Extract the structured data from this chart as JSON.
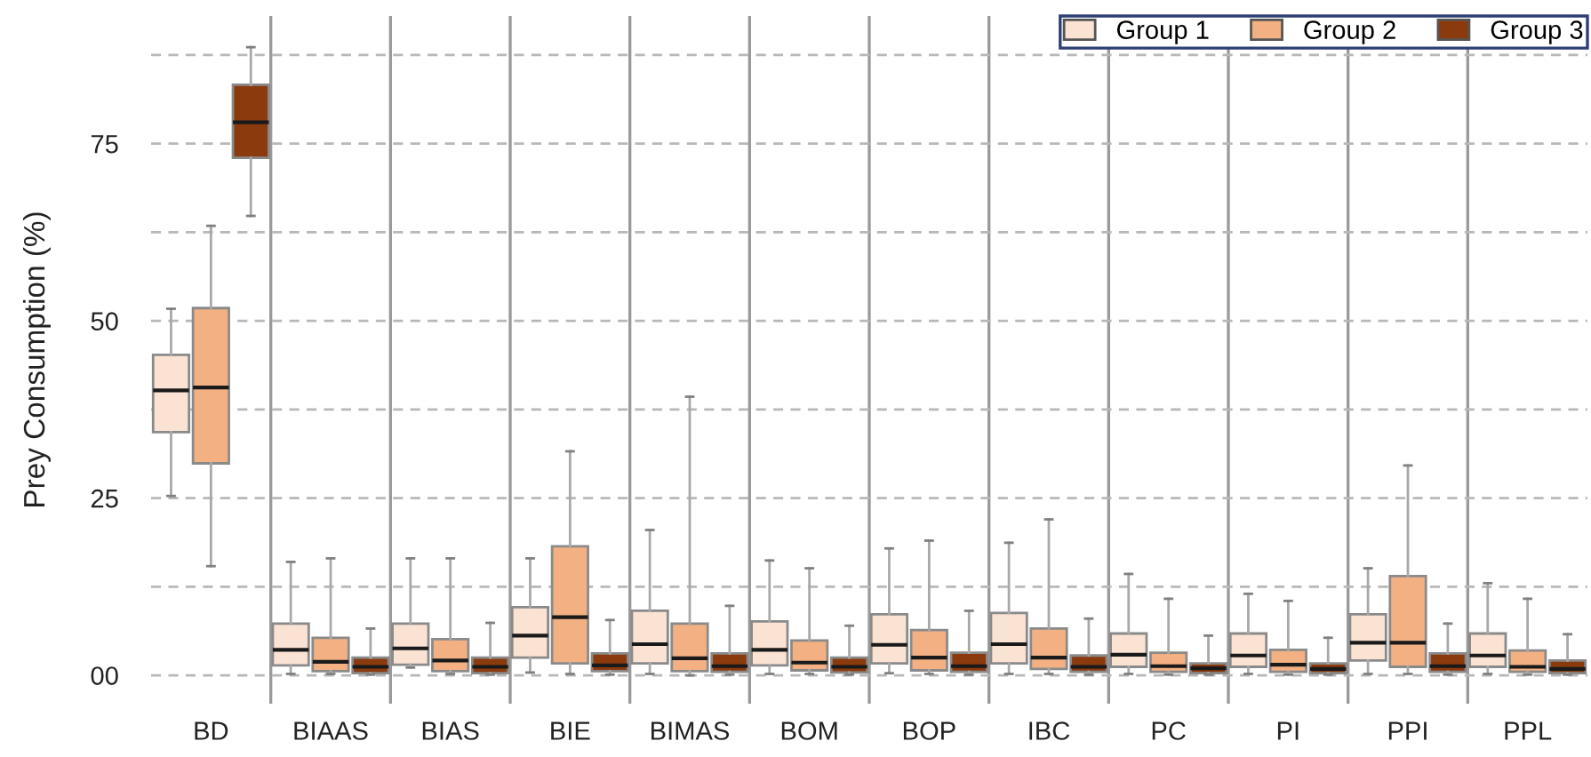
{
  "chart_data": {
    "type": "box",
    "ylabel": "Prey Consumption (%)",
    "categories": [
      "BD",
      "BIAAS",
      "BIAS",
      "BIE",
      "BIMAS",
      "BOM",
      "BOP",
      "IBC",
      "PC",
      "PI",
      "PPI",
      "PPL"
    ],
    "ylim": [
      -4,
      93
    ],
    "yticks": [
      {
        "value": 0,
        "label": "00"
      },
      {
        "value": 12.5,
        "label": null
      },
      25,
      {
        "value": 37.5,
        "label": null
      },
      50,
      {
        "value": 62.5,
        "label": null
      },
      75,
      {
        "value": 87.5,
        "label": null
      }
    ],
    "grid": true,
    "legend": "top right",
    "series": [
      {
        "name": "Group 1",
        "color": "#fbe3d4",
        "boxes": [
          {
            "low": 25.3,
            "q1": 34.3,
            "median": 40.2,
            "q3": 45.2,
            "high": 51.7
          },
          {
            "low": 0.2,
            "q1": 1.4,
            "median": 3.6,
            "q3": 7.3,
            "high": 16.0
          },
          {
            "low": 1.1,
            "q1": 1.5,
            "median": 3.8,
            "q3": 7.3,
            "high": 16.5
          },
          {
            "low": 0.4,
            "q1": 2.5,
            "median": 5.6,
            "q3": 9.6,
            "high": 16.5
          },
          {
            "low": 0.2,
            "q1": 1.7,
            "median": 4.4,
            "q3": 9.1,
            "high": 20.5
          },
          {
            "low": 0.2,
            "q1": 1.4,
            "median": 3.6,
            "q3": 7.6,
            "high": 16.2
          },
          {
            "low": 0.3,
            "q1": 1.7,
            "median": 4.3,
            "q3": 8.6,
            "high": 17.9
          },
          {
            "low": 0.2,
            "q1": 1.7,
            "median": 4.4,
            "q3": 8.8,
            "high": 18.7
          },
          {
            "low": 0.2,
            "q1": 1.2,
            "median": 2.9,
            "q3": 5.9,
            "high": 14.3
          },
          {
            "low": 0.2,
            "q1": 1.2,
            "median": 2.8,
            "q3": 5.9,
            "high": 11.5
          },
          {
            "low": 0.2,
            "q1": 2.1,
            "median": 4.6,
            "q3": 8.6,
            "high": 15.1
          },
          {
            "low": 0.2,
            "q1": 1.2,
            "median": 2.8,
            "q3": 5.9,
            "high": 13.0
          }
        ]
      },
      {
        "name": "Group 2",
        "color": "#f3b183",
        "boxes": [
          {
            "low": 15.4,
            "q1": 29.9,
            "median": 40.6,
            "q3": 51.8,
            "high": 63.4
          },
          {
            "low": 0.2,
            "q1": 0.6,
            "median": 1.9,
            "q3": 5.3,
            "high": 16.5
          },
          {
            "low": 0.2,
            "q1": 0.6,
            "median": 2.1,
            "q3": 5.1,
            "high": 16.5
          },
          {
            "low": 0.2,
            "q1": 1.7,
            "median": 8.2,
            "q3": 18.2,
            "high": 31.6
          },
          {
            "low": 0,
            "q1": 0.6,
            "median": 2.4,
            "q3": 7.3,
            "high": 39.3
          },
          {
            "low": 0.2,
            "q1": 0.7,
            "median": 1.8,
            "q3": 4.9,
            "high": 15.1
          },
          {
            "low": 0.2,
            "q1": 0.7,
            "median": 2.5,
            "q3": 6.4,
            "high": 19.0
          },
          {
            "low": 0.2,
            "q1": 0.9,
            "median": 2.5,
            "q3": 6.6,
            "high": 22.0
          },
          {
            "low": 0.1,
            "q1": 0.5,
            "median": 1.3,
            "q3": 3.2,
            "high": 10.8
          },
          {
            "low": 0.1,
            "q1": 0.5,
            "median": 1.5,
            "q3": 3.6,
            "high": 10.5
          },
          {
            "low": 0.2,
            "q1": 1.2,
            "median": 4.6,
            "q3": 14.0,
            "high": 29.6
          },
          {
            "low": 0.1,
            "q1": 0.5,
            "median": 1.2,
            "q3": 3.5,
            "high": 10.8
          }
        ]
      },
      {
        "name": "Group 3",
        "color": "#8b3a0e",
        "boxes": [
          {
            "low": 64.8,
            "q1": 73.0,
            "median": 78.0,
            "q3": 83.3,
            "high": 88.6
          },
          {
            "low": 0.1,
            "q1": 0.3,
            "median": 1.2,
            "q3": 2.5,
            "high": 6.6
          },
          {
            "low": 0.1,
            "q1": 0.3,
            "median": 1.2,
            "q3": 2.5,
            "high": 7.4
          },
          {
            "low": 0.1,
            "q1": 0.6,
            "median": 1.4,
            "q3": 3.1,
            "high": 7.8
          },
          {
            "low": 0.1,
            "q1": 0.5,
            "median": 1.3,
            "q3": 3.1,
            "high": 9.8
          },
          {
            "low": 0.1,
            "q1": 0.4,
            "median": 1.2,
            "q3": 2.5,
            "high": 7.0
          },
          {
            "low": 0.1,
            "q1": 0.5,
            "median": 1.3,
            "q3": 3.2,
            "high": 9.1
          },
          {
            "low": 0.1,
            "q1": 0.5,
            "median": 1.2,
            "q3": 2.8,
            "high": 8.0
          },
          {
            "low": 0.1,
            "q1": 0.3,
            "median": 1.0,
            "q3": 1.7,
            "high": 5.6
          },
          {
            "low": 0.1,
            "q1": 0.3,
            "median": 0.9,
            "q3": 1.7,
            "high": 5.3
          },
          {
            "low": 0.1,
            "q1": 0.5,
            "median": 1.3,
            "q3": 3.1,
            "high": 7.3
          },
          {
            "low": 0.1,
            "q1": 0.3,
            "median": 0.9,
            "q3": 2.1,
            "high": 5.8
          }
        ]
      }
    ]
  }
}
